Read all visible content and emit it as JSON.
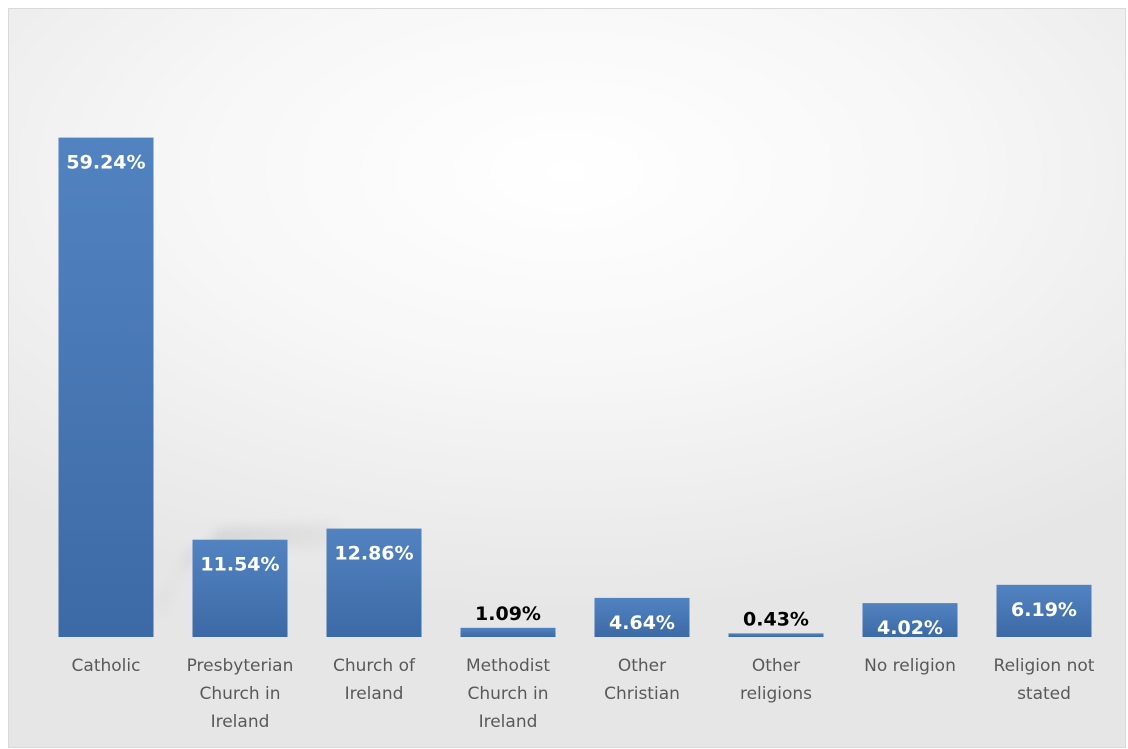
{
  "chart_data": {
    "type": "bar",
    "title": "",
    "xlabel": "",
    "ylabel": "",
    "categories": [
      [
        "Catholic"
      ],
      [
        "Presbyterian",
        "Church in",
        "Ireland"
      ],
      [
        "Church of",
        "Ireland"
      ],
      [
        "Methodist",
        "Church in",
        "Ireland"
      ],
      [
        "Other",
        "Christian"
      ],
      [
        "Other",
        "religions"
      ],
      [
        "No religion"
      ],
      [
        "Religion not",
        "stated"
      ]
    ],
    "values": [
      59.24,
      11.54,
      12.86,
      1.09,
      4.64,
      0.43,
      4.02,
      6.19
    ],
    "data_labels": [
      "59.24%",
      "11.54%",
      "12.86%",
      "1.09%",
      "4.64%",
      "0.43%",
      "4.02%",
      "6.19%"
    ],
    "label_colors": [
      "#ffffff",
      "#ffffff",
      "#ffffff",
      "#000000",
      "#ffffff",
      "#000000",
      "#ffffff",
      "#ffffff"
    ],
    "ylim": [
      0,
      70
    ],
    "grid": false,
    "legend": "none",
    "colors": {
      "bar_top": "#5283c1",
      "bar_bottom": "#3c6aa6",
      "category_text": "#595959"
    }
  }
}
